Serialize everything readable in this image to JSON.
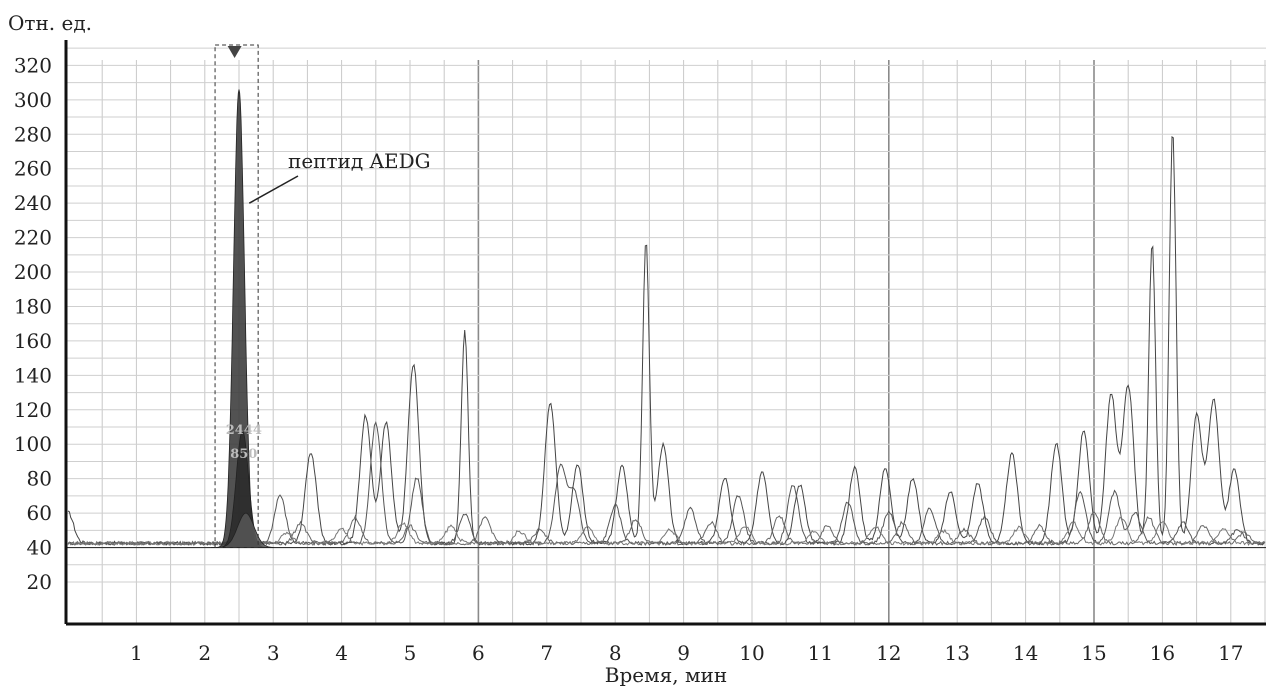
{
  "chart_data": {
    "type": "line",
    "ylabel": "Отн. ед.",
    "xlabel": "Время, мин",
    "xlim": [
      0,
      17.5
    ],
    "ylim": [
      10,
      330
    ],
    "x_ticks": [
      1,
      2,
      3,
      4,
      5,
      6,
      7,
      8,
      9,
      10,
      11,
      12,
      13,
      14,
      15,
      16,
      17
    ],
    "y_ticks": [
      20,
      40,
      60,
      80,
      100,
      120,
      140,
      160,
      180,
      200,
      220,
      240,
      260,
      280,
      300,
      320
    ],
    "grid": true,
    "baseline": 40,
    "annotation": {
      "text": "пептид AEDG",
      "target_x": 2.65,
      "target_y": 240
    },
    "selection_window": {
      "x_from": 2.15,
      "x_to": 2.78
    },
    "peak_labels": [
      "2444",
      "850"
    ],
    "highlight_peaks": [
      {
        "center": 2.5,
        "height": 306,
        "width": 0.08,
        "color": "#3a3a3a"
      },
      {
        "center": 2.55,
        "height": 108,
        "width": 0.09,
        "color": "#2a2a2a"
      },
      {
        "center": 2.6,
        "height": 60,
        "width": 0.12,
        "color": "#555555"
      }
    ],
    "series": [
      {
        "color": "#444444",
        "peaks": [
          [
            0.0,
            58
          ],
          [
            3.55,
            93
          ],
          [
            4.35,
            114
          ],
          [
            4.65,
            110
          ],
          [
            5.05,
            144
          ],
          [
            5.8,
            164
          ],
          [
            7.05,
            122
          ],
          [
            7.45,
            86
          ],
          [
            8.1,
            85
          ],
          [
            8.45,
            215
          ],
          [
            8.7,
            97
          ],
          [
            9.6,
            78
          ],
          [
            10.15,
            82
          ],
          [
            10.7,
            74
          ],
          [
            11.5,
            84
          ],
          [
            11.95,
            84
          ],
          [
            12.35,
            78
          ],
          [
            12.9,
            70
          ],
          [
            13.3,
            75
          ],
          [
            13.8,
            92
          ],
          [
            14.45,
            98
          ],
          [
            14.85,
            106
          ],
          [
            15.25,
            126
          ],
          [
            15.5,
            132
          ],
          [
            15.85,
            215
          ],
          [
            16.15,
            280
          ],
          [
            16.5,
            114
          ],
          [
            16.75,
            123
          ],
          [
            17.05,
            83
          ]
        ]
      },
      {
        "color": "#555555",
        "peaks": [
          [
            3.1,
            68
          ],
          [
            4.5,
            110
          ],
          [
            5.1,
            78
          ],
          [
            5.8,
            57
          ],
          [
            7.2,
            84
          ],
          [
            7.4,
            70
          ],
          [
            8.0,
            62
          ],
          [
            9.1,
            60
          ],
          [
            9.8,
            68
          ],
          [
            10.6,
            74
          ],
          [
            11.4,
            64
          ],
          [
            12.0,
            58
          ],
          [
            12.6,
            60
          ],
          [
            13.4,
            55
          ],
          [
            14.8,
            70
          ],
          [
            15.3,
            70
          ],
          [
            15.6,
            58
          ],
          [
            16.3,
            52
          ],
          [
            17.1,
            48
          ]
        ]
      },
      {
        "color": "#666666",
        "peaks": [
          [
            3.4,
            52
          ],
          [
            4.2,
            55
          ],
          [
            5.0,
            50
          ],
          [
            6.1,
            55
          ],
          [
            6.9,
            48
          ],
          [
            8.3,
            54
          ],
          [
            9.4,
            52
          ],
          [
            10.4,
            56
          ],
          [
            11.1,
            50
          ],
          [
            12.2,
            52
          ],
          [
            13.1,
            48
          ],
          [
            14.2,
            50
          ],
          [
            15.0,
            58
          ],
          [
            15.8,
            55
          ],
          [
            16.6,
            50
          ],
          [
            17.2,
            46
          ]
        ]
      },
      {
        "color": "#777777",
        "peaks": [
          [
            3.2,
            46
          ],
          [
            4.0,
            48
          ],
          [
            4.9,
            52
          ],
          [
            5.6,
            50
          ],
          [
            6.6,
            47
          ],
          [
            7.6,
            49
          ],
          [
            8.8,
            48
          ],
          [
            9.9,
            50
          ],
          [
            10.9,
            47
          ],
          [
            11.8,
            50
          ],
          [
            12.8,
            47
          ],
          [
            13.9,
            49
          ],
          [
            14.7,
            52
          ],
          [
            15.4,
            55
          ],
          [
            16.0,
            53
          ],
          [
            16.9,
            48
          ]
        ]
      }
    ]
  }
}
